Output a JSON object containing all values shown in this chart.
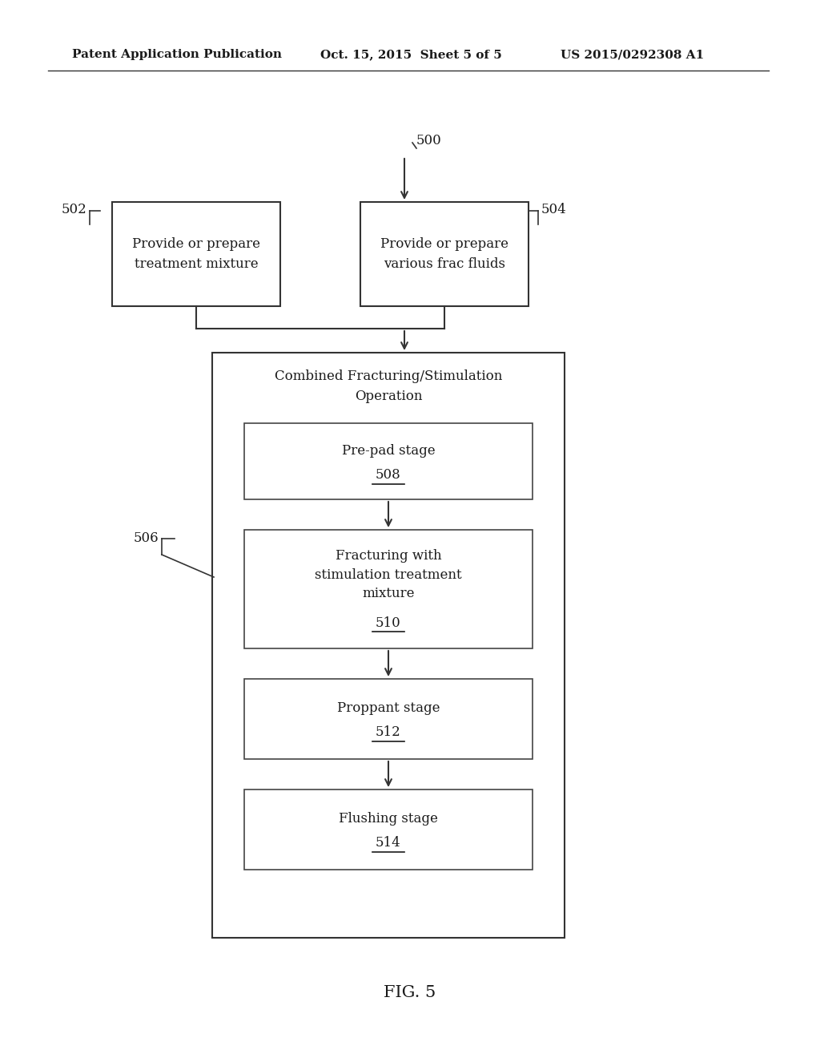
{
  "header_left": "Patent Application Publication",
  "header_mid": "Oct. 15, 2015  Sheet 5 of 5",
  "header_right": "US 2015/0292308 A1",
  "fig_label": "FIG. 5",
  "background_color": "#ffffff",
  "box502_text": "Provide or prepare\ntreatment mixture",
  "box504_text": "Provide or prepare\nvarious frac fluids",
  "box506_outer_title": "Combined Fracturing/Stimulation\nOperation",
  "label_500": "500",
  "label_502": "502",
  "label_504": "504",
  "label_506": "506"
}
